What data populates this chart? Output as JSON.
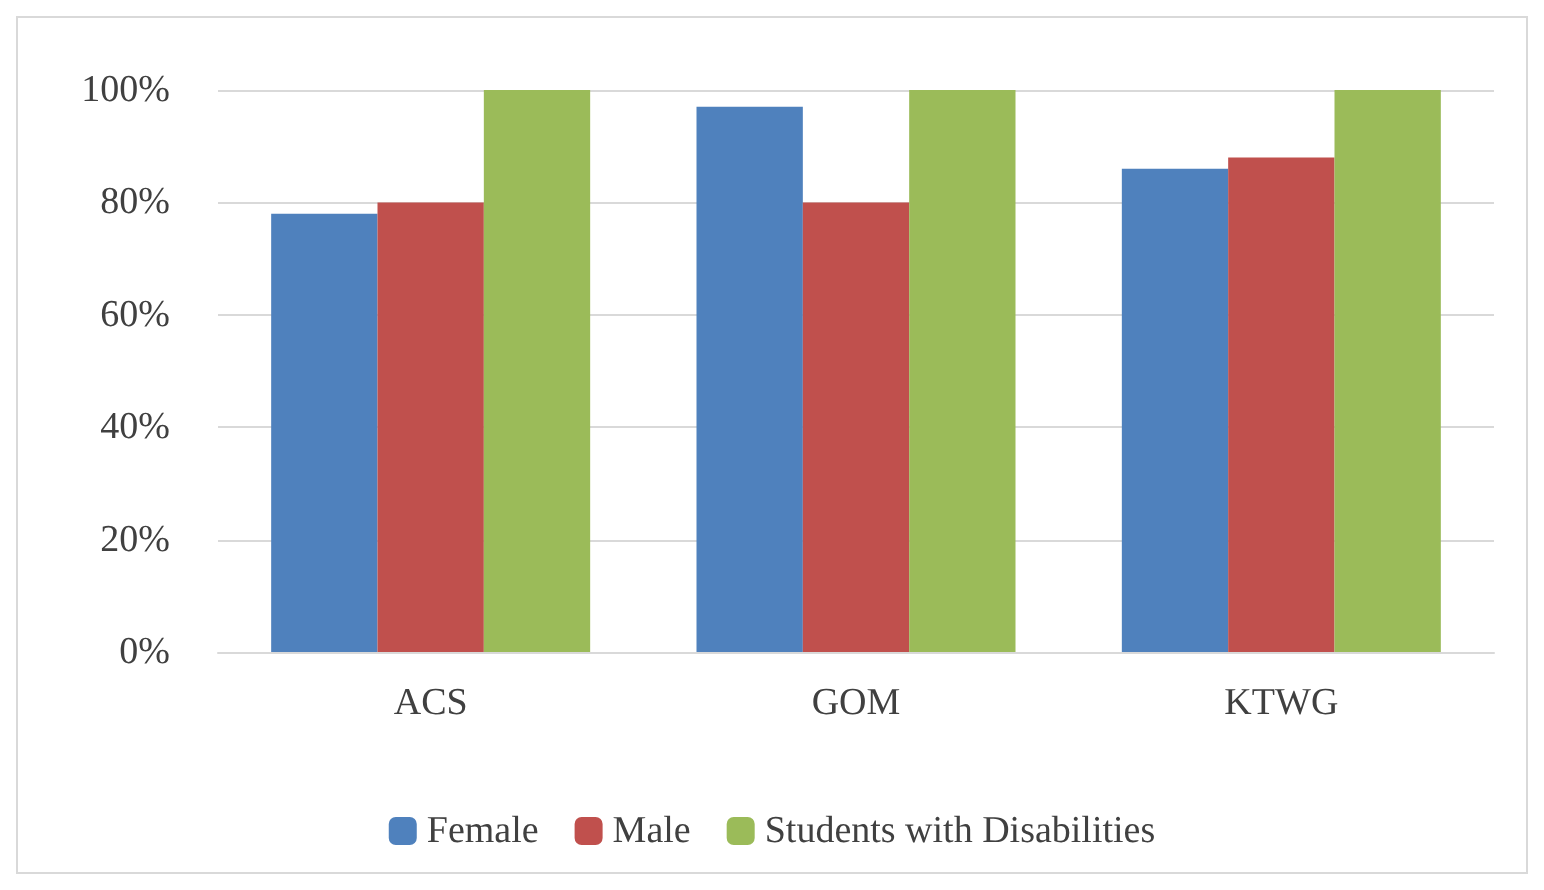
{
  "chart_data": {
    "type": "bar",
    "categories": [
      "ACS",
      "GOM",
      "KTWG"
    ],
    "series": [
      {
        "name": "Female",
        "color": "#4f81bd",
        "values": [
          78,
          97,
          86
        ]
      },
      {
        "name": "Male",
        "color": "#c0504d",
        "values": [
          80,
          80,
          88
        ]
      },
      {
        "name": "Students with Disabilities",
        "color": "#9bbb59",
        "values": [
          100,
          100,
          100
        ]
      }
    ],
    "ylim": [
      0,
      100
    ],
    "yticks": [
      {
        "value": 0,
        "label": "0%"
      },
      {
        "value": 20,
        "label": "20%"
      },
      {
        "value": 40,
        "label": "40%"
      },
      {
        "value": 60,
        "label": "60%"
      },
      {
        "value": 80,
        "label": "80%"
      },
      {
        "value": 100,
        "label": "100%"
      }
    ],
    "grid": "y",
    "legend": "bottom"
  }
}
